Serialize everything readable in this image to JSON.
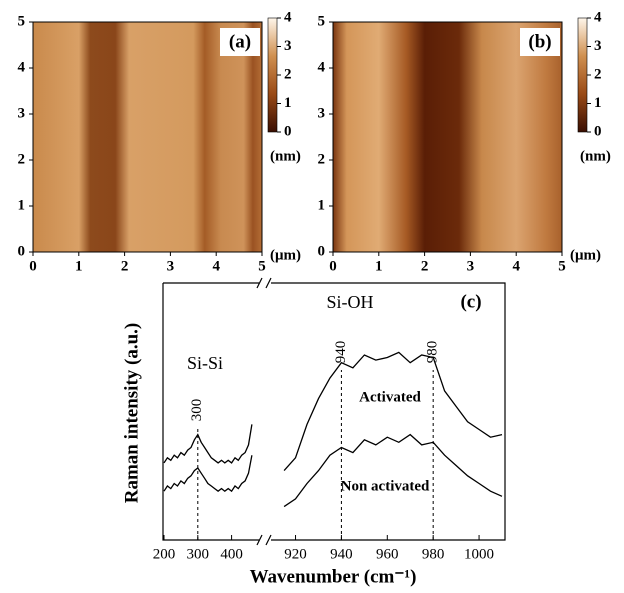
{
  "chart_data": [
    {
      "type": "image",
      "panel_label": "(a)",
      "xlim": [
        0,
        5
      ],
      "ylim": [
        0,
        5
      ],
      "xticks": [
        0,
        1,
        2,
        3,
        4,
        5
      ],
      "yticks": [
        0,
        1,
        2,
        3,
        4,
        5
      ],
      "x_unit": "(μm)",
      "colorbar": {
        "lim": [
          0,
          4
        ],
        "ticks": [
          0,
          1,
          2,
          3,
          4
        ],
        "label": "(nm)",
        "colormap": [
          "#3a0f02",
          "#9a4a16",
          "#d09050",
          "#fff6ea"
        ]
      }
    },
    {
      "type": "image",
      "panel_label": "(b)",
      "xlim": [
        0,
        5
      ],
      "ylim": [
        0,
        5
      ],
      "xticks": [
        0,
        1,
        2,
        3,
        4,
        5
      ],
      "yticks": [
        0,
        1,
        2,
        3,
        4,
        5
      ],
      "x_unit": "(μm)",
      "colorbar": {
        "lim": [
          0,
          4
        ],
        "ticks": [
          0,
          1,
          2,
          3,
          4
        ],
        "label": "(nm)",
        "colormap": [
          "#3a0f02",
          "#9a4a16",
          "#d09050",
          "#fff6ea"
        ]
      }
    },
    {
      "type": "line",
      "panel_label": "(c)",
      "x_label": "Wavenumber (cm⁻¹)",
      "y_label": "Raman intensity (a.u.)",
      "xlim": [
        197,
        1010
      ],
      "xbreak": [
        490,
        908
      ],
      "ylim": [
        0,
        100
      ],
      "xticks": [
        200,
        300,
        400,
        920,
        940,
        960,
        980,
        1000
      ],
      "reference_lines": [
        300,
        940,
        980
      ],
      "annotations": [
        "Si-Si",
        "Si-OH"
      ],
      "x": [
        200,
        210,
        220,
        230,
        240,
        250,
        260,
        270,
        280,
        290,
        300,
        310,
        320,
        330,
        340,
        350,
        360,
        370,
        380,
        390,
        400,
        410,
        420,
        430,
        440,
        450,
        460,
        915,
        920,
        925,
        930,
        935,
        940,
        945,
        950,
        955,
        960,
        965,
        970,
        975,
        980,
        985,
        990,
        995,
        1000,
        1005,
        1010
      ],
      "series": [
        {
          "name": "Activated",
          "color": "#000000",
          "values": [
            30,
            32,
            31,
            33,
            32,
            34,
            33,
            35,
            36,
            39,
            41,
            38,
            36,
            34,
            32,
            31,
            30,
            31,
            30,
            31,
            30,
            32,
            31,
            33,
            34,
            37,
            45,
            27,
            32,
            45,
            55,
            63,
            69,
            67,
            72,
            70,
            71,
            73,
            69,
            72,
            71,
            58,
            52,
            46,
            43,
            40,
            41
          ]
        },
        {
          "name": "Non activated",
          "color": "#000000",
          "values": [
            19,
            21,
            20,
            22,
            21,
            23,
            22,
            24,
            25,
            27,
            28,
            26,
            24,
            22,
            21,
            20,
            19,
            20,
            19,
            20,
            19,
            21,
            20,
            22,
            23,
            26,
            33,
            13,
            16,
            22,
            27,
            33,
            36,
            34,
            39,
            37,
            40,
            38,
            41,
            37,
            38,
            33,
            29,
            25,
            22,
            19,
            17
          ]
        }
      ]
    }
  ]
}
